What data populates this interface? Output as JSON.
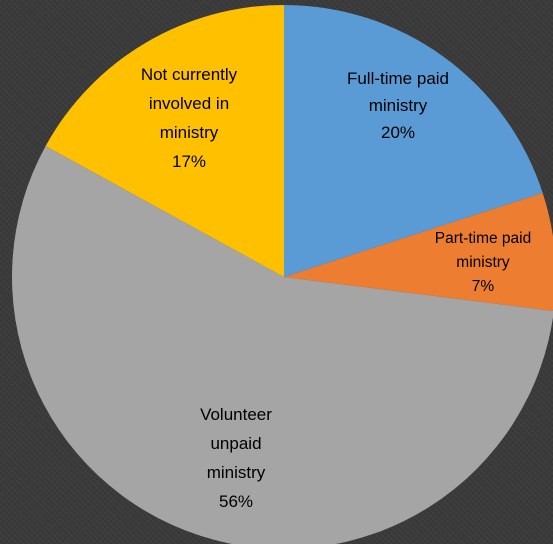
{
  "chart_data": {
    "type": "pie",
    "title": "",
    "categories": [
      "Full-time paid ministry",
      "Part-time paid ministry",
      "Volunteer unpaid ministry",
      "Not currently involved in ministry"
    ],
    "values": [
      20,
      7,
      56,
      17
    ],
    "unit": "%",
    "colors": [
      "#5b9bd5",
      "#ed7d31",
      "#a5a5a5",
      "#ffc000"
    ],
    "start_angle_deg": 0,
    "direction": "clockwise",
    "legend": "none",
    "labels": [
      {
        "lines": [
          "Full-time paid",
          "ministry",
          "20%"
        ]
      },
      {
        "lines": [
          "Part-time paid",
          "ministry",
          "7%"
        ]
      },
      {
        "lines": [
          "Volunteer",
          "unpaid",
          "ministry",
          "56%"
        ]
      },
      {
        "lines": [
          "Not currently",
          "involved in",
          "ministry",
          "17%"
        ]
      }
    ]
  }
}
